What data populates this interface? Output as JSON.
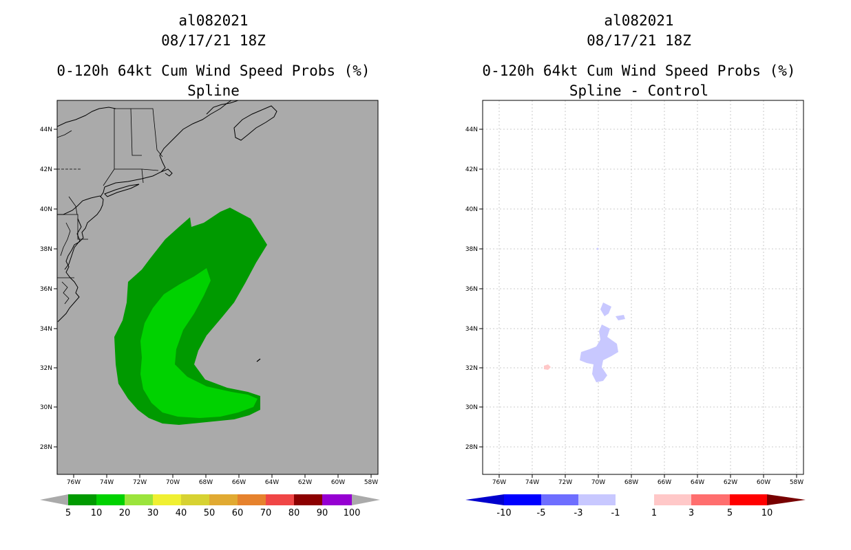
{
  "left_panel": {
    "title_line1": "al082021",
    "title_line2": "08/17/21 18Z",
    "title_line3": "0-120h 64kt Cum Wind Speed Probs (%)",
    "title_line4": "Spline",
    "background_color": "#aaaaaa",
    "colorbar": {
      "labels": [
        "5",
        "10",
        "20",
        "30",
        "40",
        "50",
        "60",
        "70",
        "80",
        "90",
        "100"
      ],
      "colors": [
        "#009a00",
        "#00d200",
        "#9be43c",
        "#f0f032",
        "#d7d232",
        "#e1aa32",
        "#e6822d",
        "#f04646",
        "#8c0000",
        "#9600d2"
      ],
      "end_color": "#aaaaaa"
    }
  },
  "right_panel": {
    "title_line1": "al082021",
    "title_line2": "08/17/21 18Z",
    "title_line3": "0-120h 64kt Cum Wind Speed Probs (%)",
    "title_line4": "Spline - Control",
    "background_color": "#ffffff",
    "colorbar": {
      "labels": [
        "-10",
        "-5",
        "-3",
        "-1",
        "1",
        "3",
        "5",
        "10"
      ],
      "colors": [
        "#0000cd",
        "#0000ff",
        "#6e6eff",
        "#c8c8ff",
        "#ffffff",
        "#ffc8c8",
        "#ff6e6e",
        "#ff0000",
        "#780000"
      ],
      "low_end_color": "#0000cd",
      "high_end_color": "#780000"
    }
  },
  "axes": {
    "lat_labels": [
      "44N",
      "42N",
      "40N",
      "38N",
      "36N",
      "34N",
      "32N",
      "30N",
      "28N"
    ],
    "lon_labels": [
      "76W",
      "74W",
      "72W",
      "70W",
      "68W",
      "66W",
      "64W",
      "62W",
      "60W",
      "58W"
    ]
  },
  "colors": {
    "prob_5": "#009a00",
    "prob_10": "#00d200",
    "diff_neg": "#c8c8ff",
    "diff_pos": "#ffc8c8"
  }
}
